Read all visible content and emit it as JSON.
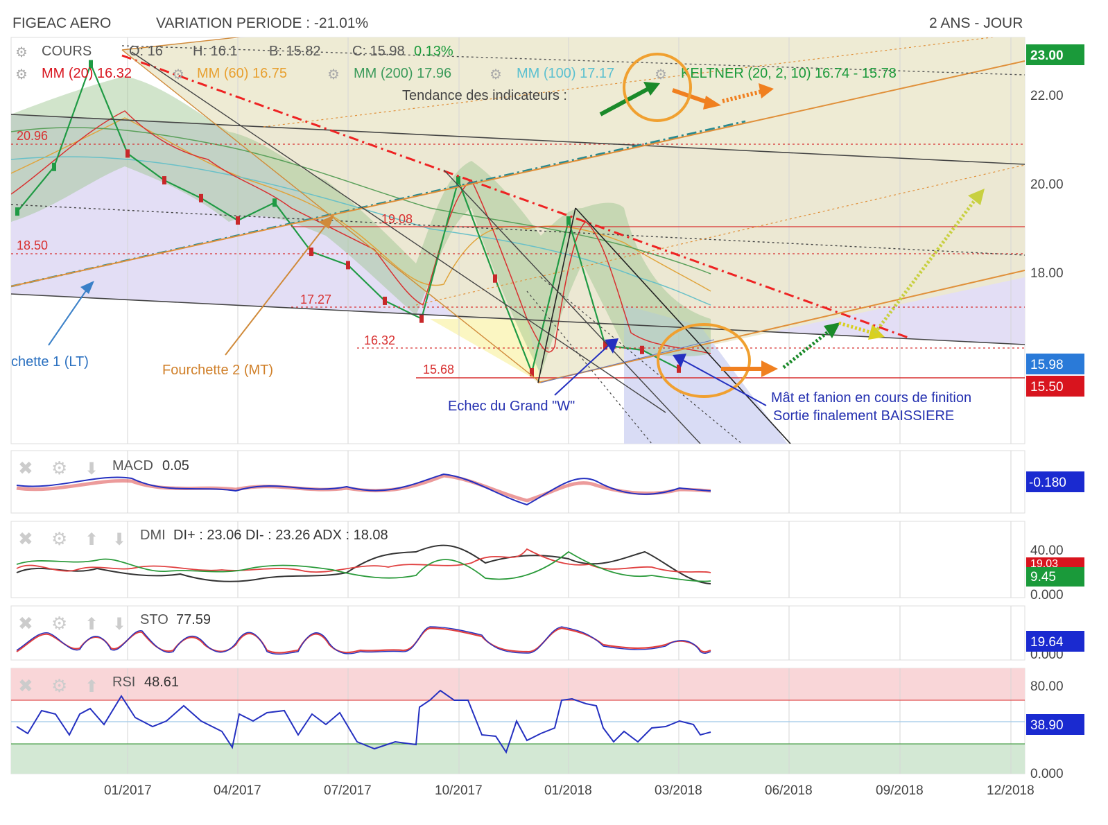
{
  "header": {
    "symbol": "FIGEAC AERO",
    "variation": "VARIATION PERIODE : -21.01%",
    "period": "2 ANS - JOUR"
  },
  "main": {
    "legend_row1": {
      "cours": "COURS",
      "open": "O: 16",
      "high": "H: 16.1",
      "low": "B: 15.82",
      "close": "C: 15.98",
      "change": "0.13%"
    },
    "legend_row2": {
      "mm20": "MM (20)  16.32",
      "mm60": "MM (60)  16.75",
      "mm200": "MM (200)  17.96",
      "mm100": "MM (100)  17.17",
      "keltner": "KELTNER (20, 2, 10)  16.74 - 15.78"
    },
    "tendance": "Tendance des indicateurs :",
    "levels": [
      {
        "label": "20.96",
        "value": 20.96
      },
      {
        "label": "19.08",
        "value": 19.08
      },
      {
        "label": "18.50",
        "value": 18.5
      },
      {
        "label": "17.27",
        "value": 17.27
      },
      {
        "label": "16.32",
        "value": 16.32
      },
      {
        "label": "15.68",
        "value": 15.68
      }
    ],
    "annotations": {
      "fourchette1": "chette 1 (LT)",
      "fourchette2": "Fourchette 2 (MT)",
      "echec": "Echec du Grand \"W\"",
      "mat1": "Mât et fanion en cours de finition",
      "mat2": "Sortie finalement BAISSIERE"
    },
    "y_ticks": [
      "22.00",
      "20.00",
      "18.00"
    ],
    "price_badges": {
      "top": "23.00",
      "last": "15.98",
      "support": "15.50"
    },
    "colors": {
      "last": "#2a7ad8",
      "support": "#d8141e",
      "top": "#1a9a3a"
    }
  },
  "macd": {
    "name": "MACD",
    "value": "0.05",
    "badge": "-0.180"
  },
  "dmi": {
    "name": "DMI",
    "values": "DI+ : 23.06 DI- : 23.26 ADX : 18.08",
    "ticks": [
      "40.00",
      "0.000"
    ],
    "badge_red": "19.03",
    "badge_green": "9.45"
  },
  "sto": {
    "name": "STO",
    "value": "77.59",
    "tick": "0.000",
    "badge": "19.64"
  },
  "rsi": {
    "name": "RSI",
    "value": "48.61",
    "ticks": [
      "80.00",
      "0.000"
    ],
    "badge": "38.90"
  },
  "x_axis": [
    "01/2017",
    "04/2017",
    "07/2017",
    "10/2017",
    "01/2018",
    "03/2018",
    "06/2018",
    "09/2018",
    "12/2018"
  ],
  "chart_data": {
    "type": "candlestick",
    "y_range": [
      14.3,
      23.4
    ],
    "date_range": [
      "2016-10",
      "2018-12"
    ],
    "close_series": [
      {
        "date": "2016-10",
        "value": 19.5
      },
      {
        "date": "2016-11",
        "value": 20.5
      },
      {
        "date": "2016-12",
        "value": 22.8
      },
      {
        "date": "2017-01",
        "value": 20.8
      },
      {
        "date": "2017-02",
        "value": 20.2
      },
      {
        "date": "2017-03",
        "value": 19.8
      },
      {
        "date": "2017-04",
        "value": 19.3
      },
      {
        "date": "2017-05",
        "value": 19.7
      },
      {
        "date": "2017-06",
        "value": 18.6
      },
      {
        "date": "2017-07",
        "value": 18.3
      },
      {
        "date": "2017-08",
        "value": 17.5
      },
      {
        "date": "2017-09",
        "value": 17.1
      },
      {
        "date": "2017-10",
        "value": 20.2
      },
      {
        "date": "2017-11",
        "value": 18.0
      },
      {
        "date": "2017-12",
        "value": 15.9
      },
      {
        "date": "2018-01",
        "value": 19.3
      },
      {
        "date": "2018-02",
        "value": 16.5
      },
      {
        "date": "2018-03",
        "value": 16.4
      },
      {
        "date": "2018-04",
        "value": 15.98
      }
    ]
  }
}
